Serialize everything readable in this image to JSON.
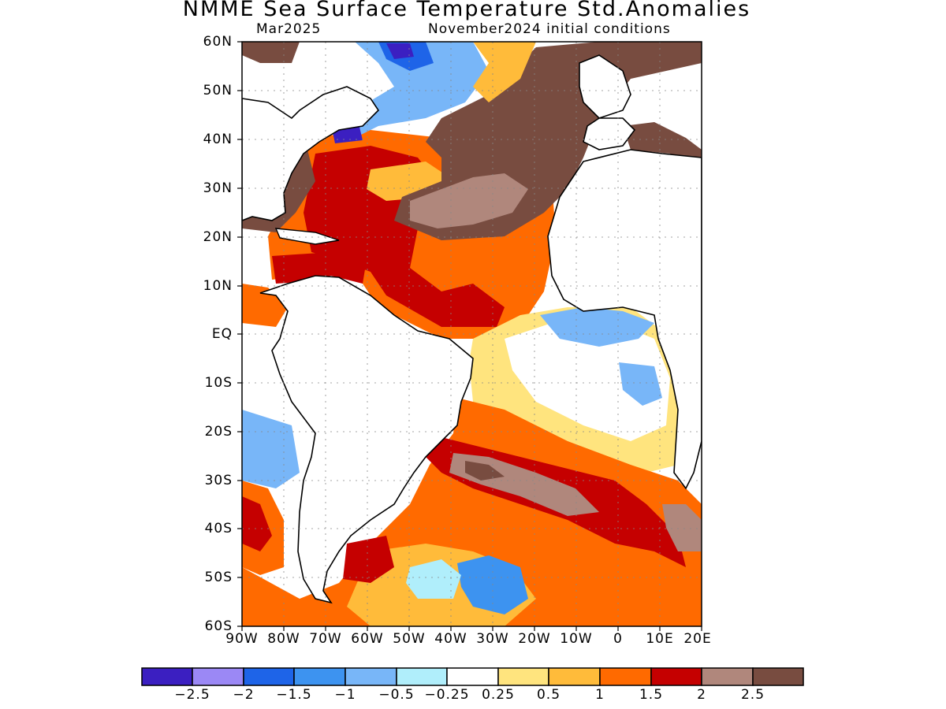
{
  "title": "NMME Sea Surface Temperature Std.Anomalies",
  "subtitle_left": "Mar2025",
  "subtitle_right": "November2024 initial conditions",
  "axes": {
    "lat_labels": [
      "60N",
      "50N",
      "40N",
      "30N",
      "20N",
      "10N",
      "EQ",
      "10S",
      "20S",
      "30S",
      "40S",
      "50S",
      "60S"
    ],
    "lon_labels": [
      "90W",
      "80W",
      "70W",
      "60W",
      "50W",
      "40W",
      "30W",
      "20W",
      "10W",
      "0",
      "10E",
      "20E"
    ],
    "lat_range": [
      -60,
      60
    ],
    "lon_range": [
      -90,
      20
    ],
    "grid": "dotted"
  },
  "colorbar": {
    "colors": [
      "#3b1fc1",
      "#9b88f5",
      "#1e64e8",
      "#3d93f0",
      "#78b6f8",
      "#b0eefb",
      "#ffffff",
      "#ffe47e",
      "#ffbb3a",
      "#ff6a00",
      "#c50000",
      "#b0877c",
      "#784c40"
    ],
    "labels": [
      "−2.5",
      "−2",
      "−1.5",
      "−1",
      "−0.5",
      "−0.25",
      "0.25",
      "0.5",
      "1",
      "1.5",
      "2",
      "2.5"
    ]
  }
}
